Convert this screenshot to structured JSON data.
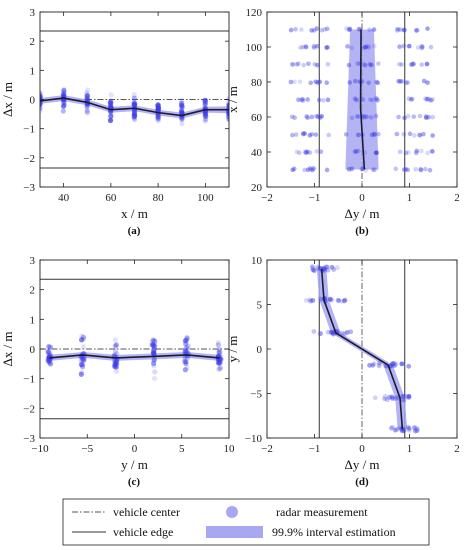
{
  "chart_data": [
    {
      "id": "a",
      "type": "scatter",
      "panel_label": "(a)",
      "xlabel": "x / m",
      "ylabel": "Δx / m",
      "xlim": [
        30,
        110
      ],
      "ylim": [
        -3,
        3
      ],
      "xticks": [
        40,
        60,
        80,
        100
      ],
      "yticks": [
        -3,
        -2,
        -1,
        0,
        1,
        2,
        3
      ],
      "xtick_labels": [
        "40",
        "60",
        "80",
        "100"
      ],
      "ytick_labels": [
        "−3",
        "−2",
        "−1",
        "0",
        "1",
        "2",
        "3"
      ],
      "vehicle_edges": {
        "axis": "y",
        "values": [
          -2.35,
          2.35
        ]
      },
      "vehicle_center": {
        "axis": "y",
        "value": 0
      },
      "estimate_line": {
        "x": [
          30,
          40,
          50,
          60,
          70,
          80,
          90,
          100,
          110
        ],
        "y": [
          -0.05,
          0.05,
          -0.1,
          -0.35,
          -0.3,
          -0.45,
          -0.55,
          -0.35,
          -0.35
        ]
      },
      "interval": {
        "x": [
          30,
          40,
          50,
          60,
          70,
          80,
          90,
          100,
          110
        ],
        "lower": [
          -0.15,
          -0.05,
          -0.2,
          -0.45,
          -0.4,
          -0.55,
          -0.65,
          -0.45,
          -0.47
        ],
        "upper": [
          0.05,
          0.15,
          0.0,
          -0.25,
          -0.2,
          -0.35,
          -0.45,
          -0.25,
          -0.23
        ]
      },
      "measurement_clusters": [
        {
          "at": 30,
          "center": 0.0,
          "spread": 0.35
        },
        {
          "at": 40,
          "center": 0.0,
          "spread": 0.45
        },
        {
          "at": 50,
          "center": -0.1,
          "spread": 0.4
        },
        {
          "at": 60,
          "center": -0.3,
          "spread": 0.45
        },
        {
          "at": 70,
          "center": -0.3,
          "spread": 0.45
        },
        {
          "at": 80,
          "center": -0.4,
          "spread": 0.35
        },
        {
          "at": 90,
          "center": -0.45,
          "spread": 0.45
        },
        {
          "at": 100,
          "center": -0.35,
          "spread": 0.45
        },
        {
          "at": 110,
          "center": -0.35,
          "spread": 0.45
        }
      ]
    },
    {
      "id": "b",
      "type": "scatter",
      "panel_label": "(b)",
      "xlabel": "Δy / m",
      "ylabel": "x / m",
      "xlim": [
        -2,
        2
      ],
      "ylim": [
        20,
        120
      ],
      "xticks": [
        -2,
        -1,
        0,
        1,
        2
      ],
      "yticks": [
        20,
        40,
        60,
        80,
        100,
        120
      ],
      "xtick_labels": [
        "−2",
        "−1",
        "0",
        "1",
        "2"
      ],
      "ytick_labels": [
        "20",
        "40",
        "60",
        "80",
        "100",
        "120"
      ],
      "vehicle_edges": {
        "axis": "x",
        "values": [
          -0.9,
          0.9
        ]
      },
      "vehicle_center": {
        "axis": "x",
        "value": 0
      },
      "estimate_line": {
        "x": [
          -0.02,
          -0.03,
          0.05
        ],
        "y": [
          110,
          65,
          30
        ]
      },
      "interval": {
        "y": [
          110,
          30
        ],
        "lower": [
          -0.25,
          -0.35
        ],
        "upper": [
          0.25,
          0.35
        ]
      },
      "measurement_rows": [
        30,
        40,
        50,
        60,
        70,
        80,
        90,
        100,
        110
      ],
      "measurement_groups": [
        -1.1,
        0.0,
        1.1
      ]
    },
    {
      "id": "c",
      "type": "scatter",
      "panel_label": "(c)",
      "xlabel": "y / m",
      "ylabel": "Δx / m",
      "xlim": [
        -10,
        10
      ],
      "ylim": [
        -3,
        3
      ],
      "xticks": [
        -10,
        -5,
        0,
        5,
        10
      ],
      "yticks": [
        -3,
        -2,
        -1,
        0,
        1,
        2,
        3
      ],
      "xtick_labels": [
        "−10",
        "−5",
        "0",
        "5",
        "10"
      ],
      "ytick_labels": [
        "−3",
        "−2",
        "−1",
        "0",
        "1",
        "2",
        "3"
      ],
      "vehicle_edges": {
        "axis": "y",
        "values": [
          -2.35,
          2.35
        ]
      },
      "vehicle_center": {
        "axis": "y",
        "value": 0
      },
      "estimate_line": {
        "x": [
          -9,
          -5.5,
          -2,
          2,
          5.5,
          9
        ],
        "y": [
          -0.3,
          -0.2,
          -0.3,
          -0.25,
          -0.2,
          -0.3
        ]
      },
      "interval": {
        "x": [
          -9,
          -5.5,
          -2,
          2,
          5.5,
          9
        ],
        "lower": [
          -0.4,
          -0.3,
          -0.4,
          -0.35,
          -0.3,
          -0.4
        ],
        "upper": [
          -0.2,
          -0.1,
          -0.2,
          -0.15,
          -0.1,
          -0.2
        ]
      },
      "measurement_clusters": [
        {
          "at": -9,
          "center": -0.3,
          "spread": 0.5
        },
        {
          "at": -5.5,
          "center": -0.2,
          "spread": 0.7
        },
        {
          "at": -2,
          "center": -0.3,
          "spread": 0.6
        },
        {
          "at": 2,
          "center": -0.25,
          "spread": 0.7
        },
        {
          "at": 5.5,
          "center": -0.2,
          "spread": 0.7
        },
        {
          "at": 9,
          "center": -0.3,
          "spread": 0.5
        }
      ]
    },
    {
      "id": "d",
      "type": "scatter",
      "panel_label": "(d)",
      "xlabel": "Δy / m",
      "ylabel": "y / m",
      "xlim": [
        -2,
        2
      ],
      "ylim": [
        -10,
        10
      ],
      "xticks": [
        -2,
        -1,
        0,
        1,
        2
      ],
      "yticks": [
        -10,
        -5,
        0,
        5,
        10
      ],
      "xtick_labels": [
        "−2",
        "−1",
        "0",
        "1",
        "2"
      ],
      "ytick_labels": [
        "−10",
        "−5",
        "0",
        "5",
        "10"
      ],
      "vehicle_edges": {
        "axis": "x",
        "values": [
          -0.9,
          0.9
        ]
      },
      "vehicle_center": {
        "axis": "x",
        "value": 0
      },
      "estimate_line": {
        "x": [
          -0.85,
          -0.8,
          -0.55,
          0.55,
          0.8,
          0.85
        ],
        "y": [
          9,
          5.5,
          1.8,
          -1.8,
          -5.5,
          -9
        ]
      },
      "interval_halfwidth": 0.1,
      "measurement_rows": [
        {
          "y": 9,
          "center": -0.85,
          "spread": 0.35
        },
        {
          "y": 5.5,
          "center": -0.75,
          "spread": 0.5
        },
        {
          "y": 1.8,
          "center": -0.6,
          "spread": 0.6
        },
        {
          "y": -1.8,
          "center": 0.6,
          "spread": 0.6
        },
        {
          "y": -5.5,
          "center": 0.75,
          "spread": 0.5
        },
        {
          "y": -9,
          "center": 0.85,
          "spread": 0.35
        }
      ]
    }
  ],
  "legend": {
    "vehicle_center": "vehicle center",
    "vehicle_edge": "vehicle edge",
    "radar_measurement": "radar measurement",
    "interval_estimation": "99.9% interval estimation"
  },
  "colors": {
    "measurement": "#3f3fe8",
    "interval_fill": "#a7a7f2",
    "line": "#1a1a33",
    "edge": "#333333"
  }
}
